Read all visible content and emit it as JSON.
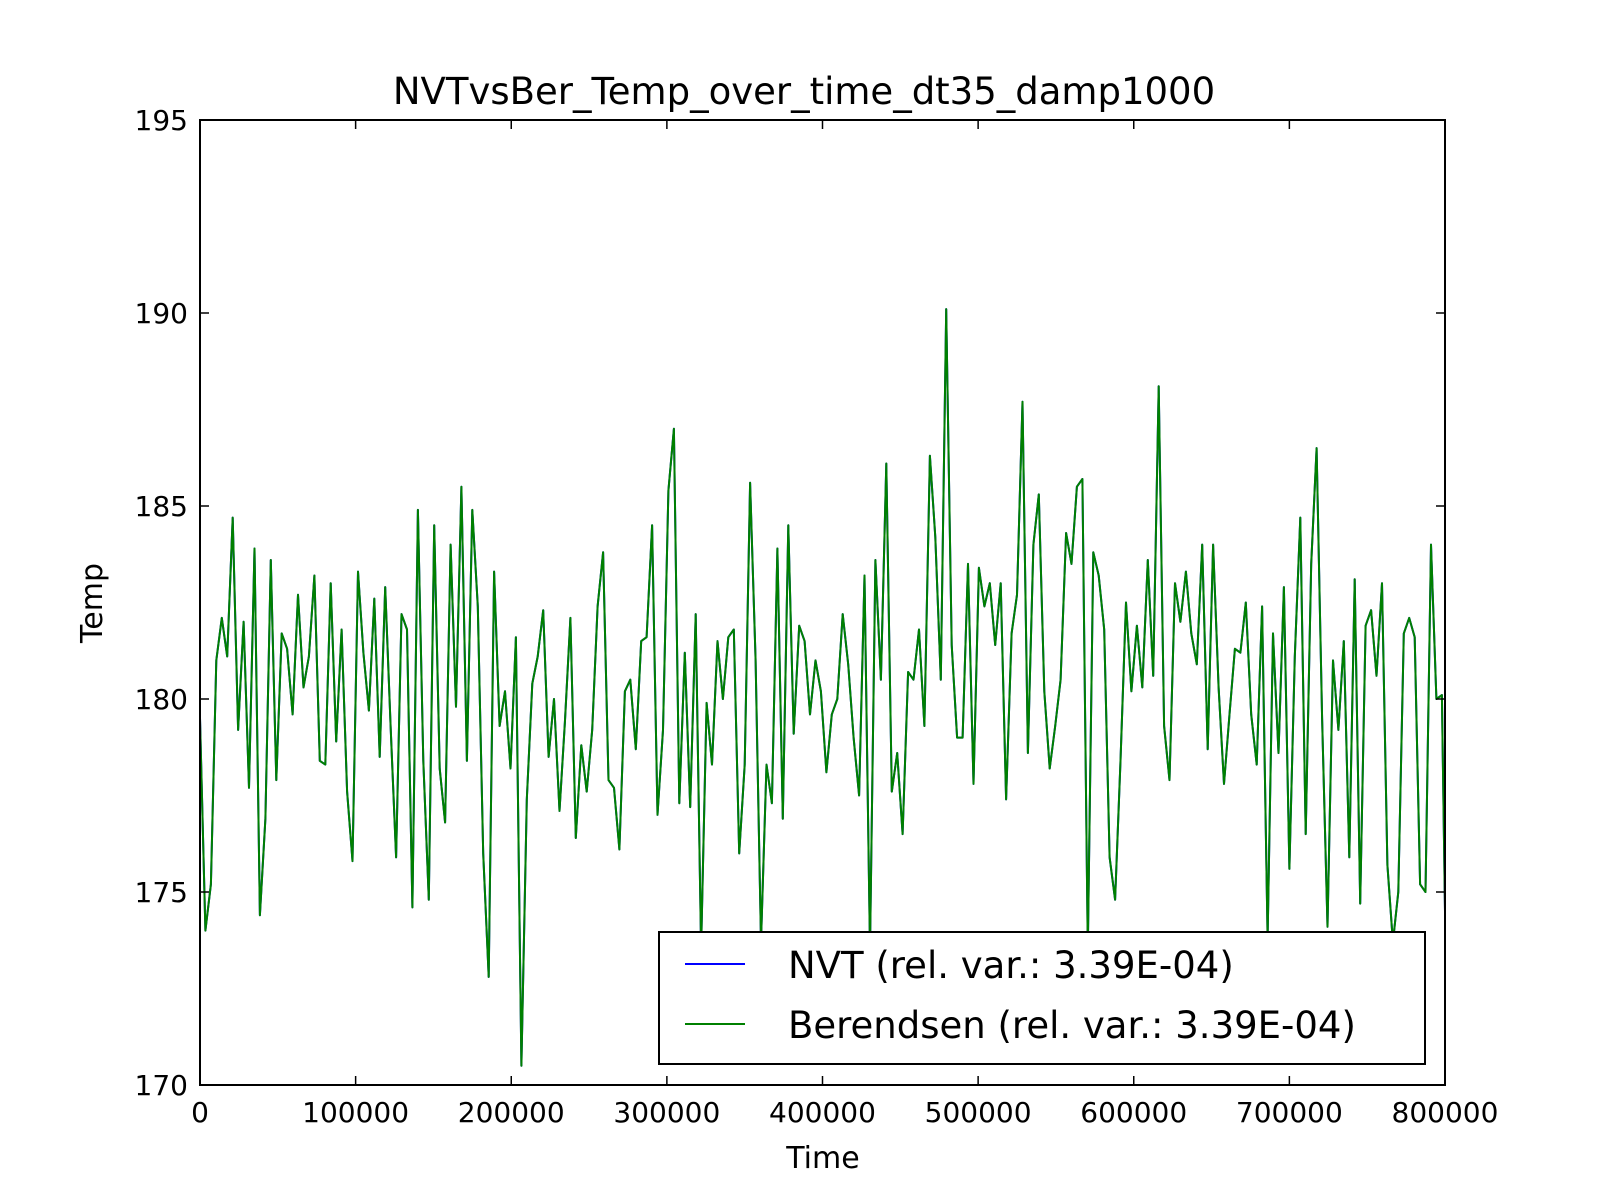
{
  "chart_data": {
    "type": "line",
    "title": "NVTvsBer_Temp_over_time_dt35_damp1000",
    "xlabel": "Time",
    "ylabel": "Temp",
    "xlim": [
      0,
      800000
    ],
    "ylim": [
      170,
      195
    ],
    "xticks": [
      "0",
      "100000",
      "200000",
      "300000",
      "400000",
      "500000",
      "600000",
      "700000",
      "800000"
    ],
    "yticks": [
      "170",
      "175",
      "180",
      "185",
      "190",
      "195"
    ],
    "grid": false,
    "legend_position": "bottom-right",
    "series": [
      {
        "name": "NVT (rel. var.: 3.39E-04)",
        "color": "#0000ff",
        "x": [
          0,
          3500,
          7000,
          10500,
          14000,
          17500,
          21000,
          24500,
          28000,
          31500,
          35000,
          38500,
          42000,
          45500,
          49000,
          52500,
          56000,
          59500,
          63000,
          66500,
          70000,
          73500,
          77000,
          80500,
          84000,
          87500,
          91000,
          94500,
          98000,
          101500,
          105000,
          108500,
          112000,
          115500,
          119000,
          122500,
          126000,
          129500,
          133000,
          136500,
          140000,
          143500,
          147000,
          150500,
          154000,
          157500,
          161000,
          164500,
          168000,
          171500,
          175000,
          178500,
          182000,
          185500,
          189000,
          192500,
          196000,
          199500,
          203000,
          206500,
          210000,
          213500,
          217000,
          220500,
          224000,
          227500,
          231000,
          234500,
          238000,
          241500,
          245000,
          248500,
          252000,
          255500,
          259000,
          262500,
          266000,
          269500,
          273000,
          276500,
          280000,
          283500,
          287000,
          290500,
          294000,
          297500,
          301000,
          304500,
          308000,
          311500,
          315000,
          318500,
          322000,
          325500,
          329000,
          332500,
          336000,
          339500,
          343000,
          346500,
          350000,
          353500,
          357000,
          360500,
          364000,
          367500,
          371000,
          374500,
          378000,
          381500,
          385000,
          388500,
          392000,
          395500,
          399000,
          402500,
          406000,
          409500,
          413000,
          416500,
          420000,
          423500,
          427000,
          430500,
          434000,
          437500,
          441000,
          444500,
          448000,
          451500,
          455000,
          458500,
          462000,
          465500,
          469000,
          472500,
          476000,
          479500,
          483000,
          486500,
          490000,
          493500,
          497000,
          500500,
          504000,
          507500,
          511000,
          514500,
          518000,
          521500,
          525000,
          528500,
          532000,
          535500,
          539000,
          542500,
          546000,
          549500,
          553000,
          556500,
          560000,
          563500,
          567000,
          570500,
          574000,
          577500,
          581000,
          584500,
          588000,
          591500,
          595000,
          598500,
          602000,
          605500,
          609000,
          612500,
          616000,
          619500,
          623000,
          626500,
          630000,
          633500,
          637000,
          640500,
          644000,
          647500,
          651000,
          654500,
          658000,
          661500,
          665000,
          668500,
          672000,
          675500,
          679000,
          682500,
          686000,
          689500,
          693000,
          696500,
          700000,
          703500,
          707000,
          710500,
          714000,
          717500,
          721000,
          724500,
          728000,
          731500,
          735000,
          738500,
          742000,
          745500,
          749000,
          752500,
          756000,
          759500,
          763000,
          766500,
          770000,
          773500,
          777000,
          780500,
          784000,
          787500,
          791000,
          794500,
          798000,
          800000
        ],
        "y": [
          179.5,
          174.0,
          175.2,
          181.0,
          182.1,
          181.1,
          184.7,
          179.2,
          182.0,
          177.7,
          183.9,
          174.4,
          176.9,
          183.6,
          177.9,
          181.7,
          181.3,
          179.6,
          182.7,
          180.3,
          181.1,
          183.2,
          178.4,
          178.3,
          183.0,
          178.9,
          181.8,
          177.6,
          175.8,
          183.3,
          181.2,
          179.7,
          182.6,
          178.5,
          182.9,
          179.3,
          175.9,
          182.2,
          181.8,
          174.6,
          184.9,
          178.4,
          174.8,
          184.5,
          178.2,
          176.8,
          184.0,
          179.8,
          185.5,
          178.4,
          184.9,
          182.4,
          176.0,
          172.8,
          183.3,
          179.3,
          180.2,
          178.2,
          181.6,
          170.5,
          177.4,
          180.4,
          181.1,
          182.3,
          178.5,
          180.0,
          177.1,
          179.4,
          182.1,
          176.4,
          178.8,
          177.6,
          179.2,
          182.4,
          183.8,
          177.9,
          177.7,
          176.1,
          180.2,
          180.5,
          178.7,
          181.5,
          181.6,
          184.5,
          177.0,
          179.2,
          185.4,
          187.0,
          177.3,
          181.2,
          177.2,
          182.2,
          173.5,
          179.9,
          178.3,
          181.5,
          180.0,
          181.6,
          181.8,
          176.0,
          178.3,
          185.6,
          181.0,
          173.7,
          178.3,
          177.3,
          183.9,
          176.9,
          184.5,
          179.1,
          181.9,
          181.5,
          179.6,
          181.0,
          180.2,
          178.1,
          179.6,
          180.0,
          182.2,
          180.9,
          179.0,
          177.5,
          183.2,
          173.5,
          183.6,
          180.5,
          186.1,
          177.6,
          178.6,
          176.5,
          180.7,
          180.5,
          181.8,
          179.3,
          186.3,
          184.2,
          180.5,
          190.1,
          181.4,
          179.0,
          179.0,
          183.5,
          177.8,
          183.4,
          182.4,
          183.0,
          181.4,
          183.0,
          177.4,
          181.7,
          182.7,
          187.7,
          178.6,
          184.0,
          185.3,
          180.2,
          178.2,
          179.3,
          180.5,
          184.3,
          183.5,
          185.5,
          185.7,
          173.5,
          183.8,
          183.2,
          181.8,
          175.9,
          174.8,
          178.4,
          182.5,
          180.2,
          181.9,
          180.3,
          183.6,
          180.6,
          188.1,
          179.3,
          177.9,
          183.0,
          182.0,
          183.3,
          181.7,
          180.9,
          184.0,
          178.7,
          184.0,
          180.3,
          177.8,
          179.6,
          181.3,
          181.2,
          182.5,
          179.6,
          178.3,
          182.4,
          173.8,
          181.7,
          178.6,
          182.9,
          175.6,
          181.1,
          184.7,
          176.5,
          183.5,
          186.5,
          179.5,
          174.1,
          181.0,
          179.2,
          181.5,
          175.9,
          183.1,
          174.7,
          181.9,
          182.3,
          180.6,
          183.0,
          175.7,
          173.7,
          175.0,
          181.7,
          182.1,
          181.6,
          175.2,
          175.0,
          184.0,
          180.0,
          180.1,
          174.5
        ]
      },
      {
        "name": "Berendsen (rel. var.: 3.39E-04)",
        "color": "#008000",
        "x": [
          0,
          3500,
          7000,
          10500,
          14000,
          17500,
          21000,
          24500,
          28000,
          31500,
          35000,
          38500,
          42000,
          45500,
          49000,
          52500,
          56000,
          59500,
          63000,
          66500,
          70000,
          73500,
          77000,
          80500,
          84000,
          87500,
          91000,
          94500,
          98000,
          101500,
          105000,
          108500,
          112000,
          115500,
          119000,
          122500,
          126000,
          129500,
          133000,
          136500,
          140000,
          143500,
          147000,
          150500,
          154000,
          157500,
          161000,
          164500,
          168000,
          171500,
          175000,
          178500,
          182000,
          185500,
          189000,
          192500,
          196000,
          199500,
          203000,
          206500,
          210000,
          213500,
          217000,
          220500,
          224000,
          227500,
          231000,
          234500,
          238000,
          241500,
          245000,
          248500,
          252000,
          255500,
          259000,
          262500,
          266000,
          269500,
          273000,
          276500,
          280000,
          283500,
          287000,
          290500,
          294000,
          297500,
          301000,
          304500,
          308000,
          311500,
          315000,
          318500,
          322000,
          325500,
          329000,
          332500,
          336000,
          339500,
          343000,
          346500,
          350000,
          353500,
          357000,
          360500,
          364000,
          367500,
          371000,
          374500,
          378000,
          381500,
          385000,
          388500,
          392000,
          395500,
          399000,
          402500,
          406000,
          409500,
          413000,
          416500,
          420000,
          423500,
          427000,
          430500,
          434000,
          437500,
          441000,
          444500,
          448000,
          451500,
          455000,
          458500,
          462000,
          465500,
          469000,
          472500,
          476000,
          479500,
          483000,
          486500,
          490000,
          493500,
          497000,
          500500,
          504000,
          507500,
          511000,
          514500,
          518000,
          521500,
          525000,
          528500,
          532000,
          535500,
          539000,
          542500,
          546000,
          549500,
          553000,
          556500,
          560000,
          563500,
          567000,
          570500,
          574000,
          577500,
          581000,
          584500,
          588000,
          591500,
          595000,
          598500,
          602000,
          605500,
          609000,
          612500,
          616000,
          619500,
          623000,
          626500,
          630000,
          633500,
          637000,
          640500,
          644000,
          647500,
          651000,
          654500,
          658000,
          661500,
          665000,
          668500,
          672000,
          675500,
          679000,
          682500,
          686000,
          689500,
          693000,
          696500,
          700000,
          703500,
          707000,
          710500,
          714000,
          717500,
          721000,
          724500,
          728000,
          731500,
          735000,
          738500,
          742000,
          745500,
          749000,
          752500,
          756000,
          759500,
          763000,
          766500,
          770000,
          773500,
          777000,
          780500,
          784000,
          787500,
          791000,
          794500,
          798000,
          800000
        ],
        "y": [
          179.5,
          174.0,
          175.2,
          181.0,
          182.1,
          181.1,
          184.7,
          179.2,
          182.0,
          177.7,
          183.9,
          174.4,
          176.9,
          183.6,
          177.9,
          181.7,
          181.3,
          179.6,
          182.7,
          180.3,
          181.1,
          183.2,
          178.4,
          178.3,
          183.0,
          178.9,
          181.8,
          177.6,
          175.8,
          183.3,
          181.2,
          179.7,
          182.6,
          178.5,
          182.9,
          179.3,
          175.9,
          182.2,
          181.8,
          174.6,
          184.9,
          178.4,
          174.8,
          184.5,
          178.2,
          176.8,
          184.0,
          179.8,
          185.5,
          178.4,
          184.9,
          182.4,
          176.0,
          172.8,
          183.3,
          179.3,
          180.2,
          178.2,
          181.6,
          170.5,
          177.4,
          180.4,
          181.1,
          182.3,
          178.5,
          180.0,
          177.1,
          179.4,
          182.1,
          176.4,
          178.8,
          177.6,
          179.2,
          182.4,
          183.8,
          177.9,
          177.7,
          176.1,
          180.2,
          180.5,
          178.7,
          181.5,
          181.6,
          184.5,
          177.0,
          179.2,
          185.4,
          187.0,
          177.3,
          181.2,
          177.2,
          182.2,
          173.5,
          179.9,
          178.3,
          181.5,
          180.0,
          181.6,
          181.8,
          176.0,
          178.3,
          185.6,
          181.0,
          173.7,
          178.3,
          177.3,
          183.9,
          176.9,
          184.5,
          179.1,
          181.9,
          181.5,
          179.6,
          181.0,
          180.2,
          178.1,
          179.6,
          180.0,
          182.2,
          180.9,
          179.0,
          177.5,
          183.2,
          173.5,
          183.6,
          180.5,
          186.1,
          177.6,
          178.6,
          176.5,
          180.7,
          180.5,
          181.8,
          179.3,
          186.3,
          184.2,
          180.5,
          190.1,
          181.4,
          179.0,
          179.0,
          183.5,
          177.8,
          183.4,
          182.4,
          183.0,
          181.4,
          183.0,
          177.4,
          181.7,
          182.7,
          187.7,
          178.6,
          184.0,
          185.3,
          180.2,
          178.2,
          179.3,
          180.5,
          184.3,
          183.5,
          185.5,
          185.7,
          173.5,
          183.8,
          183.2,
          181.8,
          175.9,
          174.8,
          178.4,
          182.5,
          180.2,
          181.9,
          180.3,
          183.6,
          180.6,
          188.1,
          179.3,
          177.9,
          183.0,
          182.0,
          183.3,
          181.7,
          180.9,
          184.0,
          178.7,
          184.0,
          180.3,
          177.8,
          179.6,
          181.3,
          181.2,
          182.5,
          179.6,
          178.3,
          182.4,
          173.8,
          181.7,
          178.6,
          182.9,
          175.6,
          181.1,
          184.7,
          176.5,
          183.5,
          186.5,
          179.5,
          174.1,
          181.0,
          179.2,
          181.5,
          175.9,
          183.1,
          174.7,
          181.9,
          182.3,
          180.6,
          183.0,
          175.7,
          173.7,
          175.0,
          181.7,
          182.1,
          181.6,
          175.2,
          175.0,
          184.0,
          180.0,
          180.1,
          174.5
        ]
      }
    ]
  }
}
